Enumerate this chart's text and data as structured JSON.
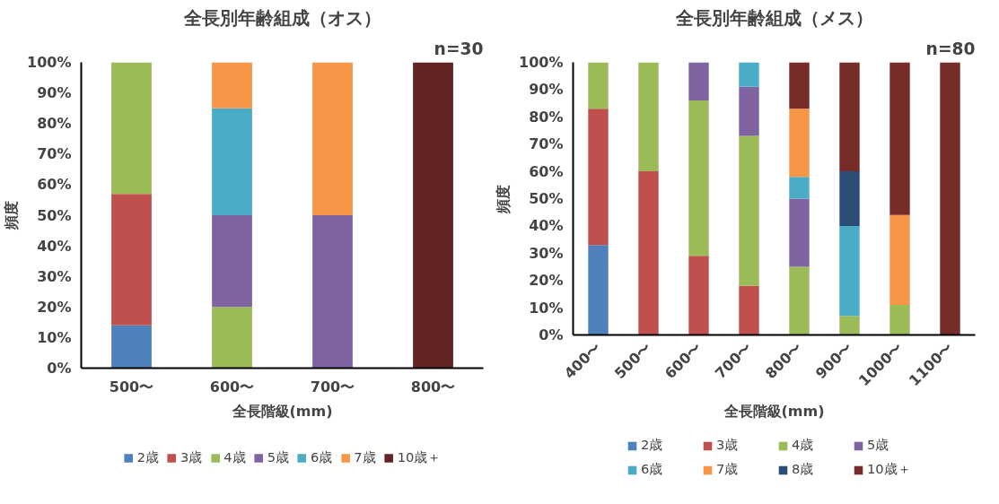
{
  "chart_data": [
    {
      "type": "bar",
      "stacked": true,
      "title": "全長別年齢組成（オス）",
      "xlabel": "全長階級(mm)",
      "ylabel": "頻度",
      "annotations": [
        "n=30"
      ],
      "categories": [
        "500〜",
        "600〜",
        "700〜",
        "800〜"
      ],
      "series": [
        {
          "name": "2歳",
          "color": "#4f81bd",
          "values": [
            14,
            0,
            0,
            0
          ]
        },
        {
          "name": "3歳",
          "color": "#c0504d",
          "values": [
            43,
            0,
            0,
            0
          ]
        },
        {
          "name": "4歳",
          "color": "#9bbb59",
          "values": [
            43,
            20,
            0,
            0
          ]
        },
        {
          "name": "5歳",
          "color": "#8064a2",
          "values": [
            0,
            30,
            50,
            0
          ]
        },
        {
          "name": "6歳",
          "color": "#4bacc6",
          "values": [
            0,
            35,
            0,
            0
          ]
        },
        {
          "name": "7歳",
          "color": "#f79646",
          "values": [
            0,
            15,
            50,
            0
          ]
        },
        {
          "name": "10歳＋",
          "color": "#632523",
          "values": [
            0,
            0,
            0,
            100
          ]
        }
      ],
      "ylim": [
        0,
        100
      ],
      "yticks": [
        {
          "value": 0,
          "label": "0%"
        },
        {
          "value": 10,
          "label": "10%"
        },
        {
          "value": 20,
          "label": "20%"
        },
        {
          "value": 30,
          "label": "30%"
        },
        {
          "value": 40,
          "label": "40%"
        },
        {
          "value": 50,
          "label": "50%"
        },
        {
          "value": 60,
          "label": "60%"
        },
        {
          "value": 70,
          "label": "70%"
        },
        {
          "value": 80,
          "label": "80%"
        },
        {
          "value": 90,
          "label": "90%"
        },
        {
          "value": 100,
          "label": "100%"
        }
      ],
      "grid": false,
      "legend": "bottom"
    },
    {
      "type": "bar",
      "stacked": true,
      "title": "全長別年齢組成（メス）",
      "xlabel": "全長階級(mm)",
      "ylabel": "頻度",
      "annotations": [
        "n=80"
      ],
      "categories": [
        "400〜",
        "500〜",
        "600〜",
        "700〜",
        "800〜",
        "900〜",
        "1000〜",
        "1100〜"
      ],
      "series": [
        {
          "name": "2歳",
          "color": "#4f81bd",
          "values": [
            33,
            0,
            0,
            0,
            0,
            0,
            0,
            0
          ]
        },
        {
          "name": "3歳",
          "color": "#c0504d",
          "values": [
            50,
            60,
            29,
            18,
            0,
            0,
            0,
            0
          ]
        },
        {
          "name": "4歳",
          "color": "#9bbb59",
          "values": [
            17,
            40,
            57,
            55,
            25,
            7,
            11,
            0
          ]
        },
        {
          "name": "5歳",
          "color": "#8064a2",
          "values": [
            0,
            0,
            14,
            18,
            25,
            0,
            0,
            0
          ]
        },
        {
          "name": "6歳",
          "color": "#4bacc6",
          "values": [
            0,
            0,
            0,
            9,
            8,
            33,
            0,
            0
          ]
        },
        {
          "name": "7歳",
          "color": "#f79646",
          "values": [
            0,
            0,
            0,
            0,
            25,
            0,
            33,
            0
          ]
        },
        {
          "name": "8歳",
          "color": "#2c4d75",
          "values": [
            0,
            0,
            0,
            0,
            0,
            20,
            0,
            0
          ]
        },
        {
          "name": "10歳＋",
          "color": "#772c2a",
          "values": [
            0,
            0,
            0,
            0,
            17,
            40,
            56,
            100
          ]
        }
      ],
      "ylim": [
        0,
        100
      ],
      "yticks": [
        {
          "value": 0,
          "label": "0%"
        },
        {
          "value": 10,
          "label": "10%"
        },
        {
          "value": 20,
          "label": "20%"
        },
        {
          "value": 30,
          "label": "30%"
        },
        {
          "value": 40,
          "label": "40%"
        },
        {
          "value": 50,
          "label": "50%"
        },
        {
          "value": 60,
          "label": "60%"
        },
        {
          "value": 70,
          "label": "70%"
        },
        {
          "value": 80,
          "label": "80%"
        },
        {
          "value": 90,
          "label": "90%"
        },
        {
          "value": 100,
          "label": "100%"
        }
      ],
      "grid": false,
      "legend": "bottom"
    }
  ]
}
